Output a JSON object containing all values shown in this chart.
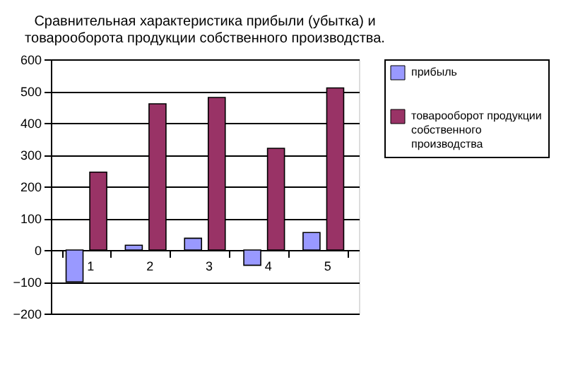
{
  "chart_data": {
    "type": "bar",
    "title": [
      "Сравнительная характеристика прибыли (убытка) и",
      "товарооборота продукции собственного производства."
    ],
    "categories": [
      "1",
      "2",
      "3",
      "4",
      "5"
    ],
    "series": [
      {
        "name": "прибыль",
        "color": "#9999ff",
        "values": [
          -100,
          15,
          37,
          -48,
          55
        ]
      },
      {
        "name": "товарооборот продукции собственного производства",
        "color": "#993366",
        "values": [
          245,
          460,
          480,
          320,
          510
        ]
      }
    ],
    "ylim": [
      -200,
      600
    ],
    "yticks": [
      -200,
      -100,
      0,
      100,
      200,
      300,
      400,
      500,
      600
    ],
    "grid": "y",
    "legend": "right"
  }
}
